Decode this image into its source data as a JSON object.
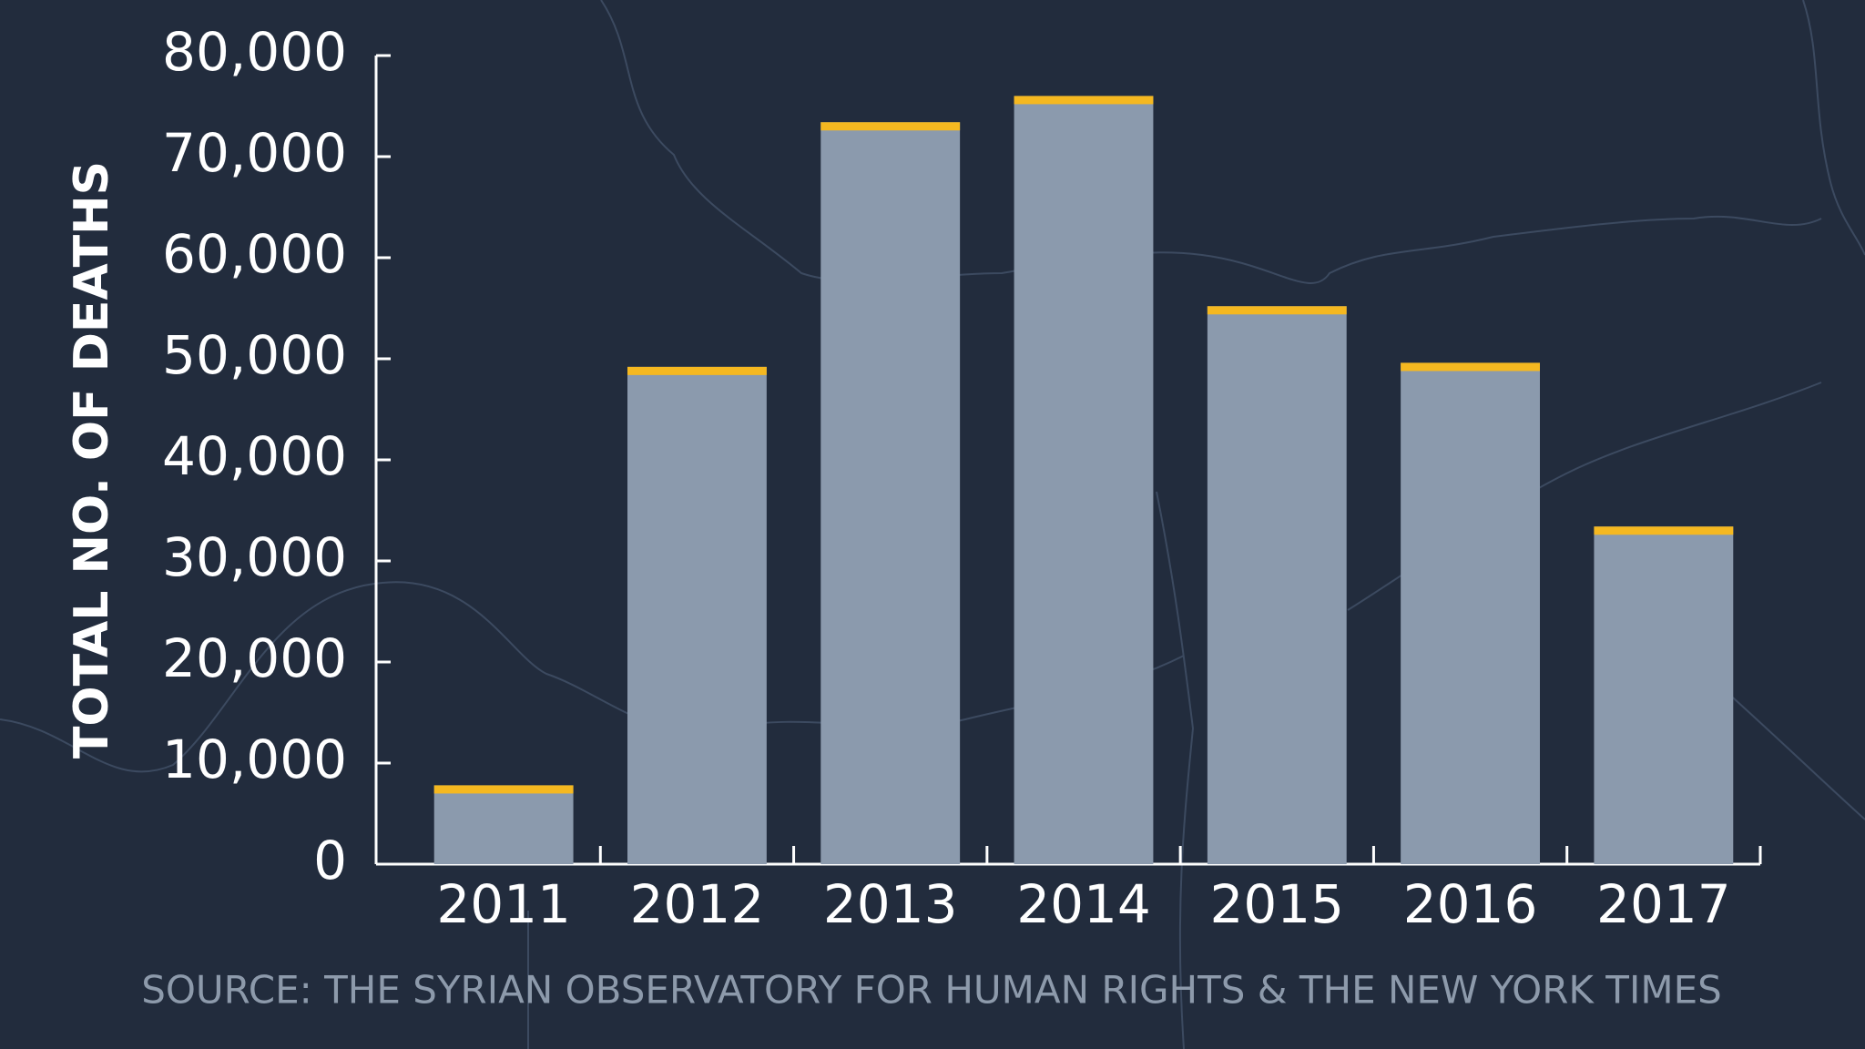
{
  "chart_data": {
    "type": "bar",
    "ylabel": "TOTAL NO. OF DEATHS",
    "source": "SOURCE: THE SYRIAN OBSERVATORY FOR HUMAN RIGHTS & THE NEW YORK TIMES",
    "categories": [
      "2011",
      "2012",
      "2013",
      "2014",
      "2015",
      "2016",
      "2017"
    ],
    "values": [
      7800,
      49200,
      73400,
      76000,
      55200,
      49600,
      33400
    ],
    "color": "#8b9aad",
    "cap_color": "#f5b820",
    "ylim": [
      0,
      80000
    ],
    "yticks": [
      0,
      {
        "value": 10000,
        "label": "10,000"
      },
      {
        "value": 20000,
        "label": "20,000"
      },
      {
        "value": 30000,
        "label": "30,000"
      },
      {
        "value": 40000,
        "label": "40,000"
      },
      {
        "value": 50000,
        "label": "50,000"
      },
      {
        "value": 60000,
        "label": "60,000"
      },
      {
        "value": 70000,
        "label": "70,000"
      },
      {
        "value": 80000,
        "label": "80,000"
      }
    ]
  }
}
